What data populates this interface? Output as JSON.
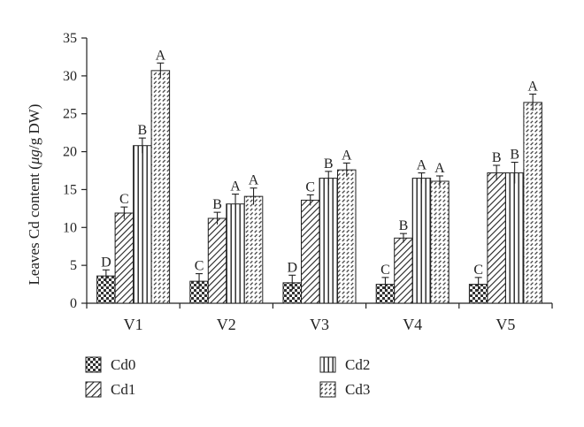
{
  "chart_data": {
    "type": "bar",
    "ylabel": "Leaves Cd content (μg/g DW)",
    "ylabel_parts": {
      "prefix": "Leaves Cd content (",
      "unit_italic": "μg",
      "suffix": "/g DW)"
    },
    "ylim": [
      0,
      35
    ],
    "yticks": [
      "0",
      "5",
      "10",
      "15",
      "20",
      "25",
      "30",
      "35"
    ],
    "categories": [
      "V1",
      "V2",
      "V3",
      "V4",
      "V5"
    ],
    "grid": false,
    "legend_position": "bottom",
    "series": [
      {
        "name": "Cd0",
        "pattern": "checker",
        "values": [
          3.6,
          2.9,
          2.7,
          2.5,
          2.5
        ],
        "errors": [
          0.8,
          1.0,
          1.0,
          0.9,
          0.9
        ],
        "letters": [
          "D",
          "C",
          "D",
          "C",
          "C"
        ]
      },
      {
        "name": "Cd1",
        "pattern": "diagonal",
        "values": [
          11.9,
          11.2,
          13.6,
          8.6,
          17.2
        ],
        "errors": [
          0.8,
          0.8,
          0.7,
          0.6,
          1.0
        ],
        "letters": [
          "C",
          "B",
          "C",
          "B",
          "B"
        ]
      },
      {
        "name": "Cd2",
        "pattern": "vertical",
        "values": [
          20.8,
          13.1,
          16.5,
          16.5,
          17.2
        ],
        "errors": [
          1.0,
          1.3,
          0.9,
          0.7,
          1.4
        ],
        "letters": [
          "B",
          "A",
          "B",
          "A",
          "B"
        ]
      },
      {
        "name": "Cd3",
        "pattern": "dashed",
        "values": [
          30.7,
          14.1,
          17.6,
          16.1,
          26.5
        ],
        "errors": [
          1.0,
          1.1,
          0.9,
          0.7,
          1.1
        ],
        "letters": [
          "A",
          "A",
          "A",
          "A",
          "A"
        ]
      }
    ]
  }
}
